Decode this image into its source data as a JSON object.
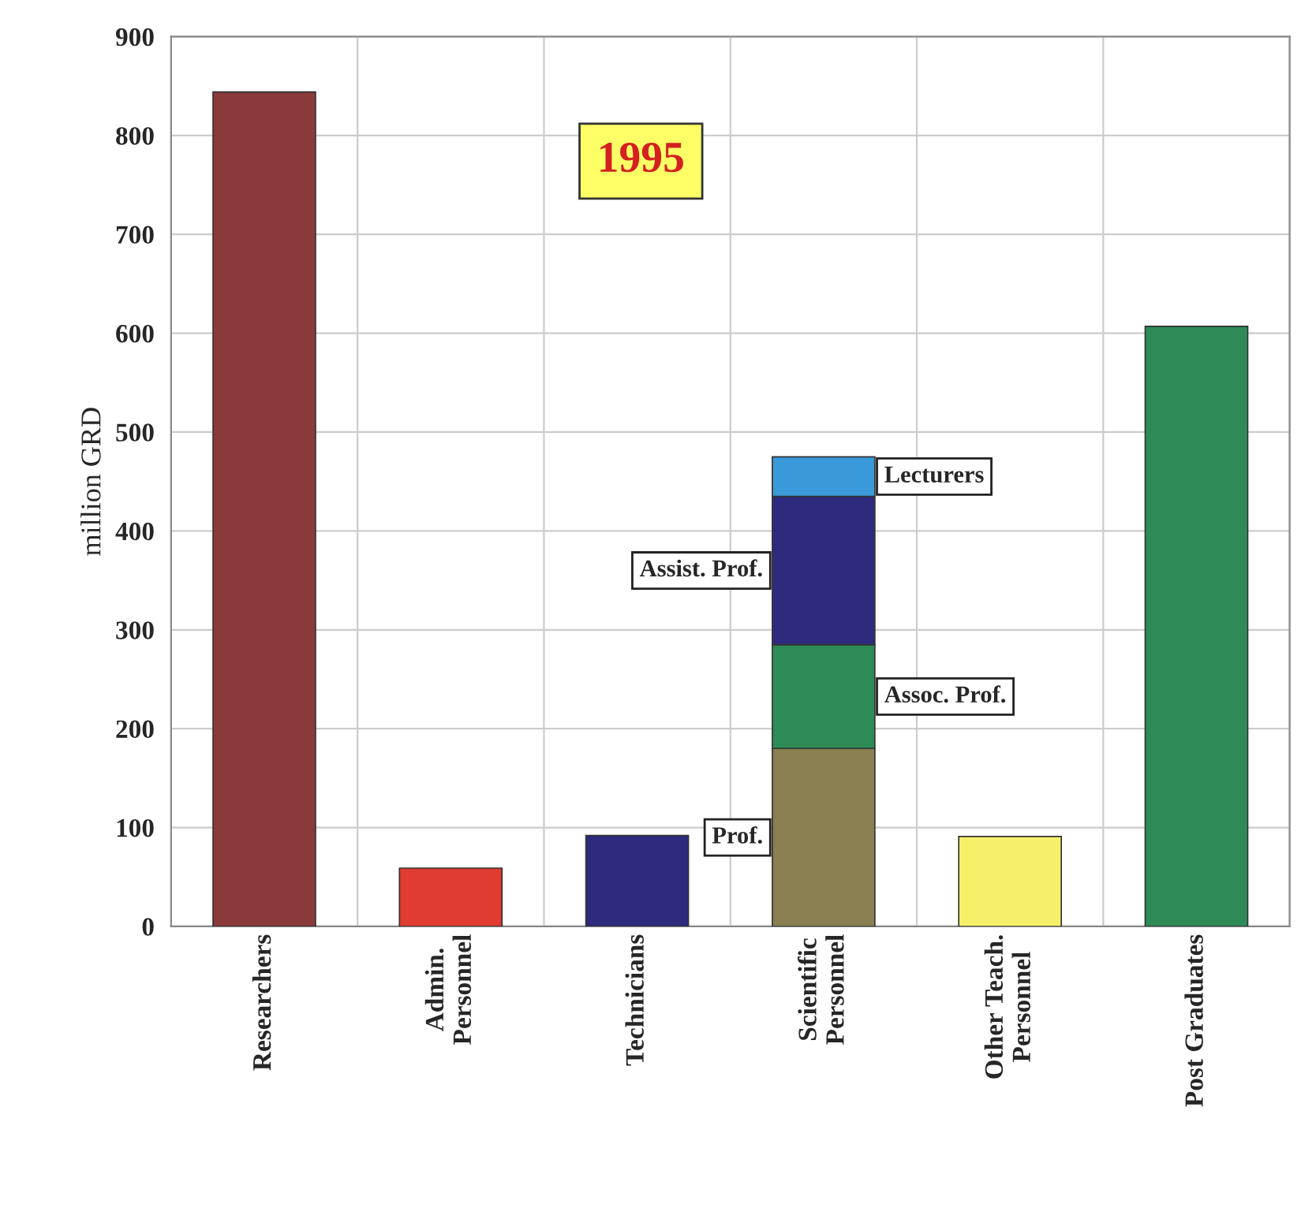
{
  "chart_data": {
    "type": "bar",
    "stacked": true,
    "ylabel": "million GRD",
    "categories": [
      "Researchers",
      "Admin.\nPersonnel",
      "Technicians",
      "Scientific\nPersonnel",
      "Other Teach.\nPersonnel",
      "Post Graduates"
    ],
    "series": [
      {
        "colors": [
          "#8b3a3a",
          "#e03c31",
          "#2e2a7e",
          "#8a7f50",
          "#f5f06a",
          "#2e8b57"
        ],
        "values": [
          844,
          59,
          92,
          null,
          91,
          607
        ]
      },
      {
        "name": "Prof.",
        "color": "#8a7f50",
        "values": [
          null,
          null,
          null,
          180,
          null,
          null
        ]
      },
      {
        "name": "Assoc. Prof.",
        "color": "#2e8b57",
        "values": [
          null,
          null,
          null,
          105,
          null,
          null
        ]
      },
      {
        "name": "Assist. Prof.",
        "color": "#2e2a7e",
        "values": [
          null,
          null,
          null,
          150,
          null,
          null
        ]
      },
      {
        "name": "Lecturers",
        "color": "#3a9ad9",
        "values": [
          null,
          null,
          null,
          40,
          null,
          null
        ]
      }
    ],
    "ylim": [
      0,
      900
    ],
    "yticks": [
      0,
      100,
      200,
      300,
      400,
      500,
      600,
      700,
      800,
      900
    ],
    "grid": true,
    "legend": false,
    "annotations": [
      "1995"
    ]
  }
}
